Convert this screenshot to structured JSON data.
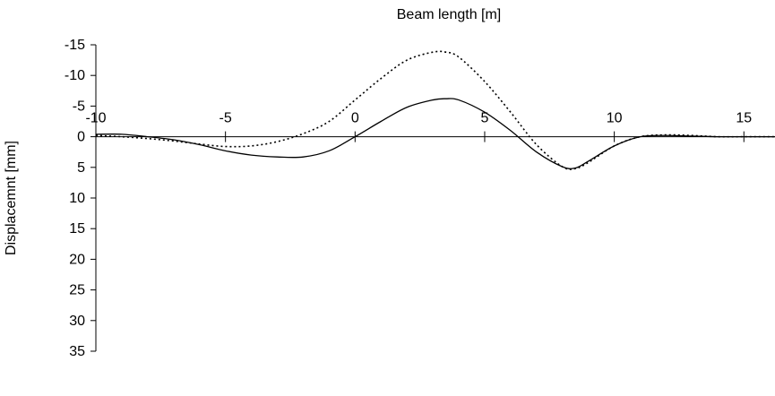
{
  "chart_data": {
    "type": "line",
    "title": "",
    "xlabel": "Beam length [m]",
    "ylabel": "Displacemnt [mm]",
    "xlim": [
      -10,
      16.2
    ],
    "ylim": [
      -15,
      35
    ],
    "y_inverted": true,
    "x_axis_position": "top, crossing at y = 0",
    "x_ticks": [
      -10,
      -5,
      0,
      5,
      10,
      15
    ],
    "x_tick_labels": [
      "-10",
      "-5",
      "0",
      "5",
      "10",
      "15"
    ],
    "y_ticks": [
      -15,
      -10,
      -5,
      0,
      5,
      10,
      15,
      20,
      25,
      30,
      35
    ],
    "y_tick_labels": [
      "-15",
      "-10",
      "-5",
      "0",
      "5",
      "10",
      "15",
      "20",
      "25",
      "30",
      "35"
    ],
    "grid": false,
    "legend": "none",
    "series": [
      {
        "style": "solid",
        "color": "#000000",
        "x": [
          -10,
          -9,
          -8,
          -7,
          -6,
          -5,
          -4,
          -3,
          -2,
          -1,
          0,
          1,
          2,
          3,
          3.5,
          4,
          5,
          6,
          7,
          8,
          8.5,
          9,
          10,
          11,
          12,
          13,
          14,
          15,
          16.2
        ],
        "y": [
          -0.4,
          -0.4,
          0,
          0.5,
          1.3,
          2.3,
          3,
          3.3,
          3.3,
          2.3,
          0,
          -2.5,
          -4.8,
          -6,
          -6.2,
          -6,
          -4,
          -1,
          2.5,
          4.9,
          5.1,
          4,
          1.5,
          0,
          -0.2,
          -0.1,
          0,
          0,
          0
        ]
      },
      {
        "style": "dotted",
        "color": "#000000",
        "x": [
          -10,
          -9,
          -8,
          -7,
          -6,
          -5,
          -4,
          -3,
          -2,
          -1,
          0,
          1,
          2,
          3,
          3.5,
          4,
          5,
          6,
          7,
          8,
          8.5,
          9,
          10,
          11,
          12,
          13,
          14,
          15,
          16.2
        ],
        "y": [
          -0.2,
          0,
          0.3,
          0.7,
          1.2,
          1.6,
          1.5,
          0.8,
          -0.5,
          -2.5,
          -6,
          -9.5,
          -12.5,
          -13.8,
          -13.8,
          -13,
          -9,
          -4,
          1.3,
          4.9,
          5.2,
          4.2,
          1.5,
          0,
          -0.3,
          -0.2,
          0,
          0,
          0
        ]
      }
    ]
  }
}
